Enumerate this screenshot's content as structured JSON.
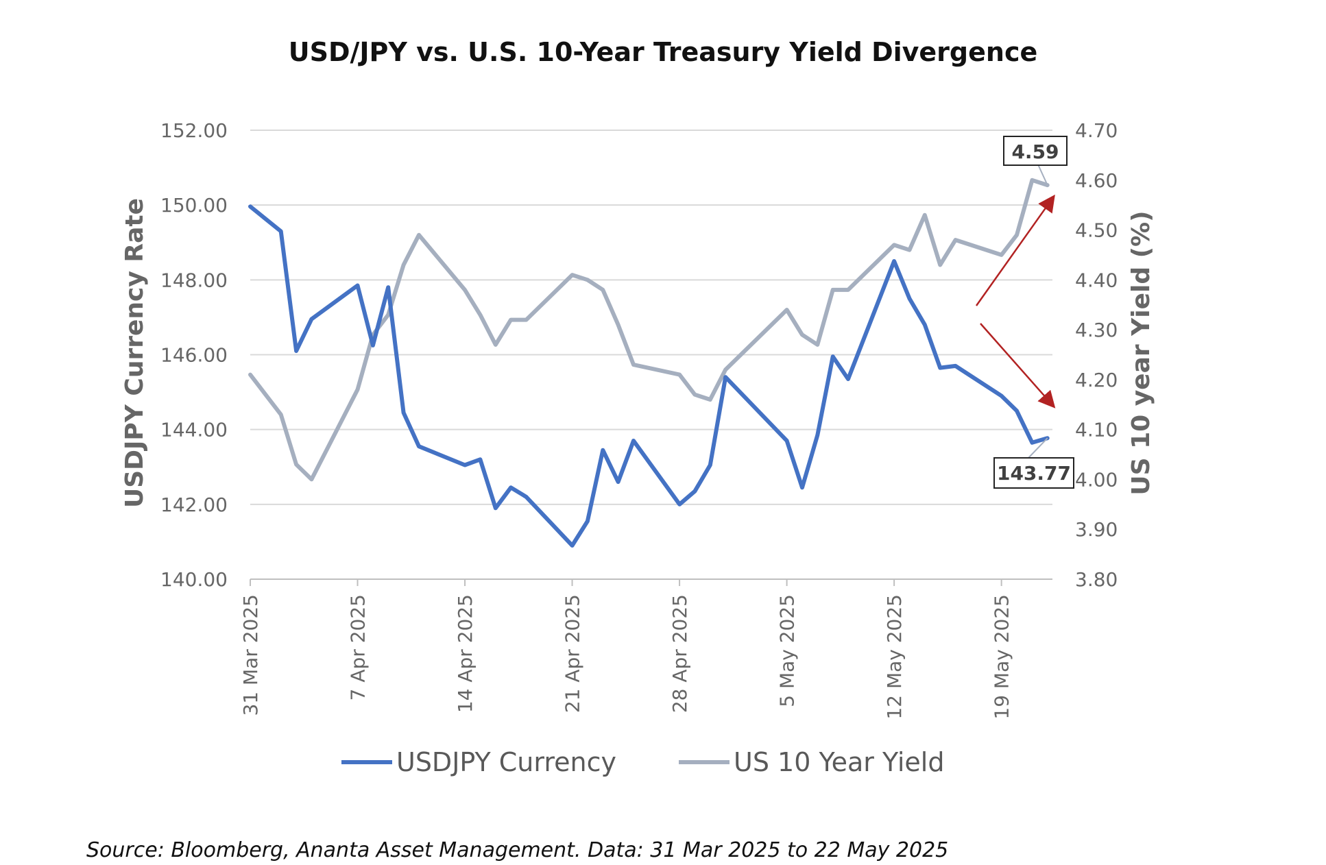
{
  "chart_data": {
    "type": "line",
    "title": "USD/JPY vs. U.S. 10-Year Treasury Yield Divergence",
    "ylabel": "USDJPY Currency Rate",
    "y2label": "US 10 year Yield (%)",
    "ylim": [
      140,
      152
    ],
    "y2lim": [
      3.8,
      4.7
    ],
    "yticks": [
      "140.00",
      "142.00",
      "144.00",
      "146.00",
      "148.00",
      "150.00",
      "152.00"
    ],
    "y2ticks": [
      "3.80",
      "3.90",
      "4.00",
      "4.10",
      "4.20",
      "4.30",
      "4.40",
      "4.50",
      "4.60",
      "4.70"
    ],
    "xticks": [
      "31 Mar 2025",
      "7 Apr 2025",
      "14 Apr 2025",
      "21 Apr 2025",
      "28 Apr 2025",
      "5 May 2025",
      "12 May 2025",
      "19 May 2025"
    ],
    "x_start": "31 Mar 2025",
    "x": [
      "2025-03-31",
      "2025-04-02",
      "2025-04-03",
      "2025-04-04",
      "2025-04-07",
      "2025-04-08",
      "2025-04-09",
      "2025-04-10",
      "2025-04-11",
      "2025-04-14",
      "2025-04-15",
      "2025-04-16",
      "2025-04-17",
      "2025-04-18",
      "2025-04-21",
      "2025-04-22",
      "2025-04-23",
      "2025-04-24",
      "2025-04-25",
      "2025-04-28",
      "2025-04-29",
      "2025-04-30",
      "2025-05-01",
      "2025-05-05",
      "2025-05-06",
      "2025-05-07",
      "2025-05-08",
      "2025-05-09",
      "2025-05-12",
      "2025-05-13",
      "2025-05-14",
      "2025-05-15",
      "2025-05-16",
      "2025-05-19",
      "2025-05-20",
      "2025-05-21",
      "2025-05-22"
    ],
    "series": [
      {
        "name": "USDJPY Currency",
        "axis": "left",
        "color": "#4472C4",
        "values": [
          149.96,
          149.3,
          146.1,
          146.95,
          147.85,
          146.25,
          147.8,
          144.45,
          143.55,
          143.05,
          143.2,
          141.9,
          142.45,
          142.2,
          140.9,
          141.55,
          143.45,
          142.6,
          143.7,
          142.0,
          142.35,
          143.05,
          145.4,
          143.7,
          142.45,
          143.85,
          145.95,
          145.35,
          148.5,
          147.5,
          146.8,
          145.65,
          145.7,
          144.9,
          144.5,
          143.65,
          143.77
        ]
      },
      {
        "name": "US 10 Year Yield",
        "axis": "right",
        "color": "#A5AFBF",
        "values": [
          4.21,
          4.13,
          4.03,
          4.0,
          4.18,
          4.29,
          4.33,
          4.43,
          4.49,
          4.38,
          4.33,
          4.27,
          4.32,
          4.32,
          4.41,
          4.4,
          4.38,
          4.31,
          4.23,
          4.21,
          4.17,
          4.16,
          4.22,
          4.34,
          4.29,
          4.27,
          4.38,
          4.38,
          4.47,
          4.46,
          4.53,
          4.43,
          4.48,
          4.45,
          4.49,
          4.6,
          4.59
        ]
      }
    ],
    "callouts": [
      {
        "series": "US 10 Year Yield",
        "text": "4.59"
      },
      {
        "series": "USDJPY Currency",
        "text": "143.77"
      }
    ],
    "annotations": [
      {
        "type": "arrow",
        "direction": "up",
        "color": "#B22222"
      },
      {
        "type": "arrow",
        "direction": "down",
        "color": "#B22222"
      }
    ],
    "grid": true,
    "legend": "bottom",
    "source": "Source: Bloomberg, Ananta Asset Management. Data: 31 Mar 2025 to 22 May 2025"
  }
}
